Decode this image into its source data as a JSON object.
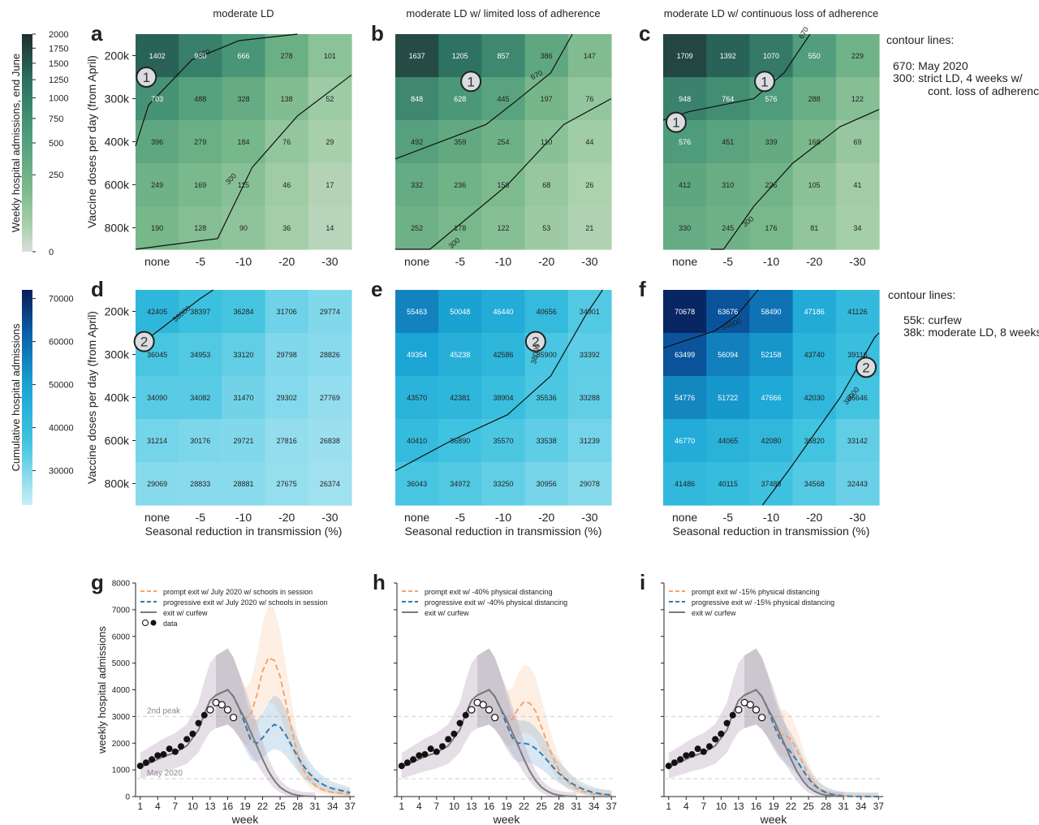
{
  "chart_data": {
    "heatmaps": {
      "x_categories": [
        "none",
        "-5",
        "-10",
        "-20",
        "-30"
      ],
      "y_categories": [
        "200k",
        "300k",
        "400k",
        "600k",
        "800k"
      ],
      "ylabel": "Vaccine doses per day (from April)",
      "xlabel": "Seasonal reduction in transmission (%)",
      "row_top": {
        "colorbar_label": "Weekly hospital admissions, end June",
        "colorbar_ticks": [
          0,
          250,
          500,
          750,
          1000,
          1250,
          1500,
          1750,
          2000
        ],
        "contour_legend": [
          "contour lines:",
          "670: May 2020",
          "300: strict LD, 4 weeks w/",
          "cont. loss of adherence"
        ],
        "panels": [
          {
            "letter": "a",
            "title": "moderate LD",
            "values": [
              [
                1402,
                980,
                666,
                278,
                101
              ],
              [
                703,
                488,
                328,
                138,
                52
              ],
              [
                396,
                279,
                184,
                76,
                29
              ],
              [
                249,
                169,
                115,
                46,
                17
              ],
              [
                190,
                128,
                90,
                36,
                14
              ]
            ]
          },
          {
            "letter": "b",
            "title": "moderate LD w/ limited loss of adherence",
            "values": [
              [
                1637,
                1205,
                857,
                386,
                147
              ],
              [
                848,
                628,
                445,
                197,
                76
              ],
              [
                492,
                359,
                254,
                110,
                44
              ],
              [
                332,
                236,
                158,
                68,
                26
              ],
              [
                252,
                178,
                122,
                53,
                21
              ]
            ]
          },
          {
            "letter": "c",
            "title": "moderate LD w/ continuous loss of adherence",
            "values": [
              [
                1709,
                1392,
                1070,
                550,
                229
              ],
              [
                948,
                764,
                576,
                288,
                122
              ],
              [
                576,
                451,
                339,
                168,
                69
              ],
              [
                412,
                310,
                226,
                105,
                41
              ],
              [
                330,
                245,
                176,
                81,
                34
              ]
            ]
          }
        ],
        "contour_labels": [
          "670",
          "300"
        ],
        "marker": "1"
      },
      "row_bottom": {
        "colorbar_label": "Cumulative hospital admissions",
        "colorbar_ticks": [
          30000,
          40000,
          50000,
          60000,
          70000
        ],
        "contour_legend": [
          "contour lines:",
          "55k: curfew",
          "38k: moderate LD, 8 weeks"
        ],
        "panels": [
          {
            "letter": "d",
            "values": [
              [
                42405,
                38397,
                36284,
                31706,
                29774
              ],
              [
                36045,
                34953,
                33120,
                29798,
                28826
              ],
              [
                34090,
                34082,
                31470,
                29302,
                27769
              ],
              [
                31214,
                30176,
                29721,
                27816,
                26838
              ],
              [
                29069,
                28833,
                28881,
                27675,
                26374
              ]
            ]
          },
          {
            "letter": "e",
            "values": [
              [
                55463,
                50048,
                46440,
                40656,
                34901
              ],
              [
                49354,
                45238,
                42586,
                35900,
                33392
              ],
              [
                43570,
                42381,
                38904,
                35536,
                33288
              ],
              [
                40410,
                36890,
                35570,
                33538,
                31239
              ],
              [
                36043,
                34972,
                33250,
                30956,
                29078
              ]
            ]
          },
          {
            "letter": "f",
            "values": [
              [
                70678,
                63676,
                58490,
                47186,
                41126
              ],
              [
                63499,
                56094,
                52158,
                43740,
                39116
              ],
              [
                54776,
                51722,
                47666,
                42030,
                36646
              ],
              [
                46770,
                44065,
                42080,
                36820,
                33142
              ],
              [
                41486,
                40115,
                37489,
                34568,
                32443
              ]
            ]
          }
        ],
        "contour_labels": [
          "38000",
          "55000"
        ],
        "marker": "2"
      }
    },
    "lines": {
      "type": "line",
      "xlabel": "week",
      "ylabel": "weekly hospital admissions",
      "x_ticks": [
        1,
        4,
        7,
        10,
        13,
        16,
        19,
        22,
        25,
        28,
        31,
        34,
        37
      ],
      "y_ticks": [
        0,
        1000,
        2000,
        3000,
        4000,
        5000,
        6000,
        7000,
        8000
      ],
      "ylim": [
        0,
        8000
      ],
      "ref_lines": [
        {
          "label": "2nd peak",
          "y": 3000
        },
        {
          "label": "May 2020",
          "y": 670
        }
      ],
      "data_series": {
        "filled": [
          [
            1,
            1150
          ],
          [
            2,
            1270
          ],
          [
            3,
            1390
          ],
          [
            4,
            1540
          ],
          [
            5,
            1580
          ],
          [
            6,
            1790
          ],
          [
            7,
            1680
          ],
          [
            8,
            1880
          ],
          [
            9,
            2150
          ],
          [
            10,
            2350
          ],
          [
            11,
            2750
          ],
          [
            12,
            3050
          ]
        ],
        "open": [
          [
            13,
            3250
          ],
          [
            14,
            3520
          ],
          [
            15,
            3440
          ],
          [
            16,
            3250
          ],
          [
            17,
            2960
          ]
        ]
      },
      "panels": [
        {
          "letter": "g",
          "legend": [
            "prompt exit w/ July 2020 w/ schools in session",
            "progressive exit w/ July 2020 w/ schools in session",
            "exit w/ curfew",
            "data"
          ],
          "series": [
            {
              "name": "prompt exit w/ July 2020 w/ schools in session",
              "color": "#f5a46c",
              "x": [
                14,
                15,
                16,
                17,
                18,
                19,
                20,
                21,
                22,
                23,
                24,
                25,
                26,
                27,
                28,
                29,
                30,
                31,
                32,
                33,
                34,
                35,
                36,
                37
              ],
              "y": [
                3800,
                3900,
                4000,
                3750,
                3300,
                2900,
                3100,
                3800,
                4700,
                5200,
                5100,
                4500,
                3500,
                2500,
                1600,
                1000,
                650,
                420,
                280,
                200,
                160,
                140,
                120,
                100
              ]
            },
            {
              "name": "progressive exit w/ July 2020 w/ schools in session",
              "color": "#2f7bb5",
              "x": [
                14,
                15,
                16,
                17,
                18,
                19,
                20,
                21,
                22,
                23,
                24,
                25,
                26,
                27,
                28,
                29,
                30,
                31,
                32,
                33,
                34,
                35,
                36,
                37
              ],
              "y": [
                3800,
                3900,
                4000,
                3750,
                3300,
                2700,
                2100,
                2000,
                2200,
                2500,
                2700,
                2600,
                2300,
                1900,
                1500,
                1150,
                870,
                650,
                500,
                380,
                300,
                250,
                200,
                150
              ]
            },
            {
              "name": "exit w/ curfew",
              "color": "#7a7a7a",
              "x": [
                1,
                3,
                5,
                7,
                9,
                11,
                12,
                13,
                14,
                15,
                16,
                17,
                18,
                19,
                20,
                21,
                22,
                23,
                24,
                25,
                26,
                27,
                28,
                29,
                30,
                31
              ],
              "y": [
                1100,
                1300,
                1500,
                1650,
                1900,
                2500,
                3100,
                3600,
                3800,
                3900,
                4000,
                3750,
                3300,
                2900,
                2400,
                1900,
                1400,
                950,
                600,
                350,
                200,
                100,
                50,
                20,
                10,
                5
              ]
            }
          ]
        },
        {
          "letter": "h",
          "legend": [
            "prompt exit w/ -40% physical distancing",
            "progressive exit w/ -40% physical distancing",
            "exit w/ curfew"
          ],
          "series": [
            {
              "name": "prompt exit w/ -40% physical distancing",
              "color": "#f5a46c",
              "x": [
                14,
                15,
                16,
                17,
                18,
                19,
                20,
                21,
                22,
                23,
                24,
                25,
                26,
                27,
                28,
                29,
                30,
                31,
                32,
                33,
                34,
                35,
                36,
                37
              ],
              "y": [
                3800,
                3900,
                4000,
                3750,
                3300,
                2800,
                2900,
                3300,
                3550,
                3500,
                3200,
                2600,
                2000,
                1450,
                1000,
                680,
                450,
                300,
                200,
                140,
                100,
                80,
                60,
                50
              ]
            },
            {
              "name": "progressive exit w/ -40% physical distancing",
              "color": "#2f7bb5",
              "x": [
                14,
                15,
                16,
                17,
                18,
                19,
                20,
                21,
                22,
                23,
                24,
                25,
                26,
                27,
                28,
                29,
                30,
                31,
                32,
                33,
                34,
                35,
                36,
                37
              ],
              "y": [
                3800,
                3900,
                4000,
                3750,
                3300,
                2700,
                2200,
                2000,
                2000,
                1950,
                1800,
                1600,
                1350,
                1100,
                870,
                680,
                520,
                390,
                290,
                210,
                150,
                110,
                80,
                60
              ]
            },
            {
              "name": "exit w/ curfew",
              "color": "#7a7a7a",
              "x": [
                1,
                3,
                5,
                7,
                9,
                11,
                12,
                13,
                14,
                15,
                16,
                17,
                18,
                19,
                20,
                21,
                22,
                23,
                24,
                25,
                26,
                27,
                28,
                29,
                30,
                31
              ],
              "y": [
                1100,
                1300,
                1500,
                1650,
                1900,
                2500,
                3100,
                3600,
                3800,
                3900,
                4000,
                3750,
                3300,
                2900,
                2400,
                1900,
                1400,
                950,
                600,
                350,
                200,
                100,
                50,
                20,
                10,
                5
              ]
            }
          ]
        },
        {
          "letter": "i",
          "legend": [
            "prompt exit w/ -15% physical distancing",
            "progressive exit w/ -15% physical distancing",
            "exit w/ curfew"
          ],
          "series": [
            {
              "name": "prompt exit w/ -15% physical distancing",
              "color": "#f5a46c",
              "x": [
                14,
                15,
                16,
                17,
                18,
                19,
                20,
                21,
                22,
                23,
                24,
                25,
                26,
                27,
                28,
                29,
                30,
                31,
                32,
                33,
                34,
                35,
                36,
                37
              ],
              "y": [
                3800,
                3900,
                4000,
                3750,
                3300,
                2700,
                2300,
                2300,
                2150,
                1750,
                1250,
                800,
                480,
                270,
                150,
                80,
                40,
                20,
                10,
                5,
                3,
                2,
                1,
                0
              ]
            },
            {
              "name": "progressive exit w/ -15% physical distancing",
              "color": "#2f7bb5",
              "x": [
                14,
                15,
                16,
                17,
                18,
                19,
                20,
                21,
                22,
                23,
                24,
                25,
                26,
                27,
                28,
                29,
                30,
                31,
                32,
                33,
                34,
                35,
                36,
                37
              ],
              "y": [
                3800,
                3900,
                4000,
                3750,
                3300,
                2700,
                2200,
                1900,
                1650,
                1350,
                1000,
                680,
                430,
                260,
                150,
                85,
                45,
                25,
                12,
                6,
                3,
                2,
                1,
                0
              ]
            },
            {
              "name": "exit w/ curfew",
              "color": "#7a7a7a",
              "x": [
                1,
                3,
                5,
                7,
                9,
                11,
                12,
                13,
                14,
                15,
                16,
                17,
                18,
                19,
                20,
                21,
                22,
                23,
                24,
                25,
                26,
                27,
                28,
                29,
                30,
                31
              ],
              "y": [
                1100,
                1300,
                1500,
                1650,
                1900,
                2500,
                3100,
                3600,
                3800,
                3900,
                4000,
                3750,
                3300,
                2900,
                2400,
                1900,
                1400,
                950,
                600,
                350,
                200,
                100,
                50,
                20,
                10,
                5
              ]
            }
          ]
        }
      ]
    }
  }
}
